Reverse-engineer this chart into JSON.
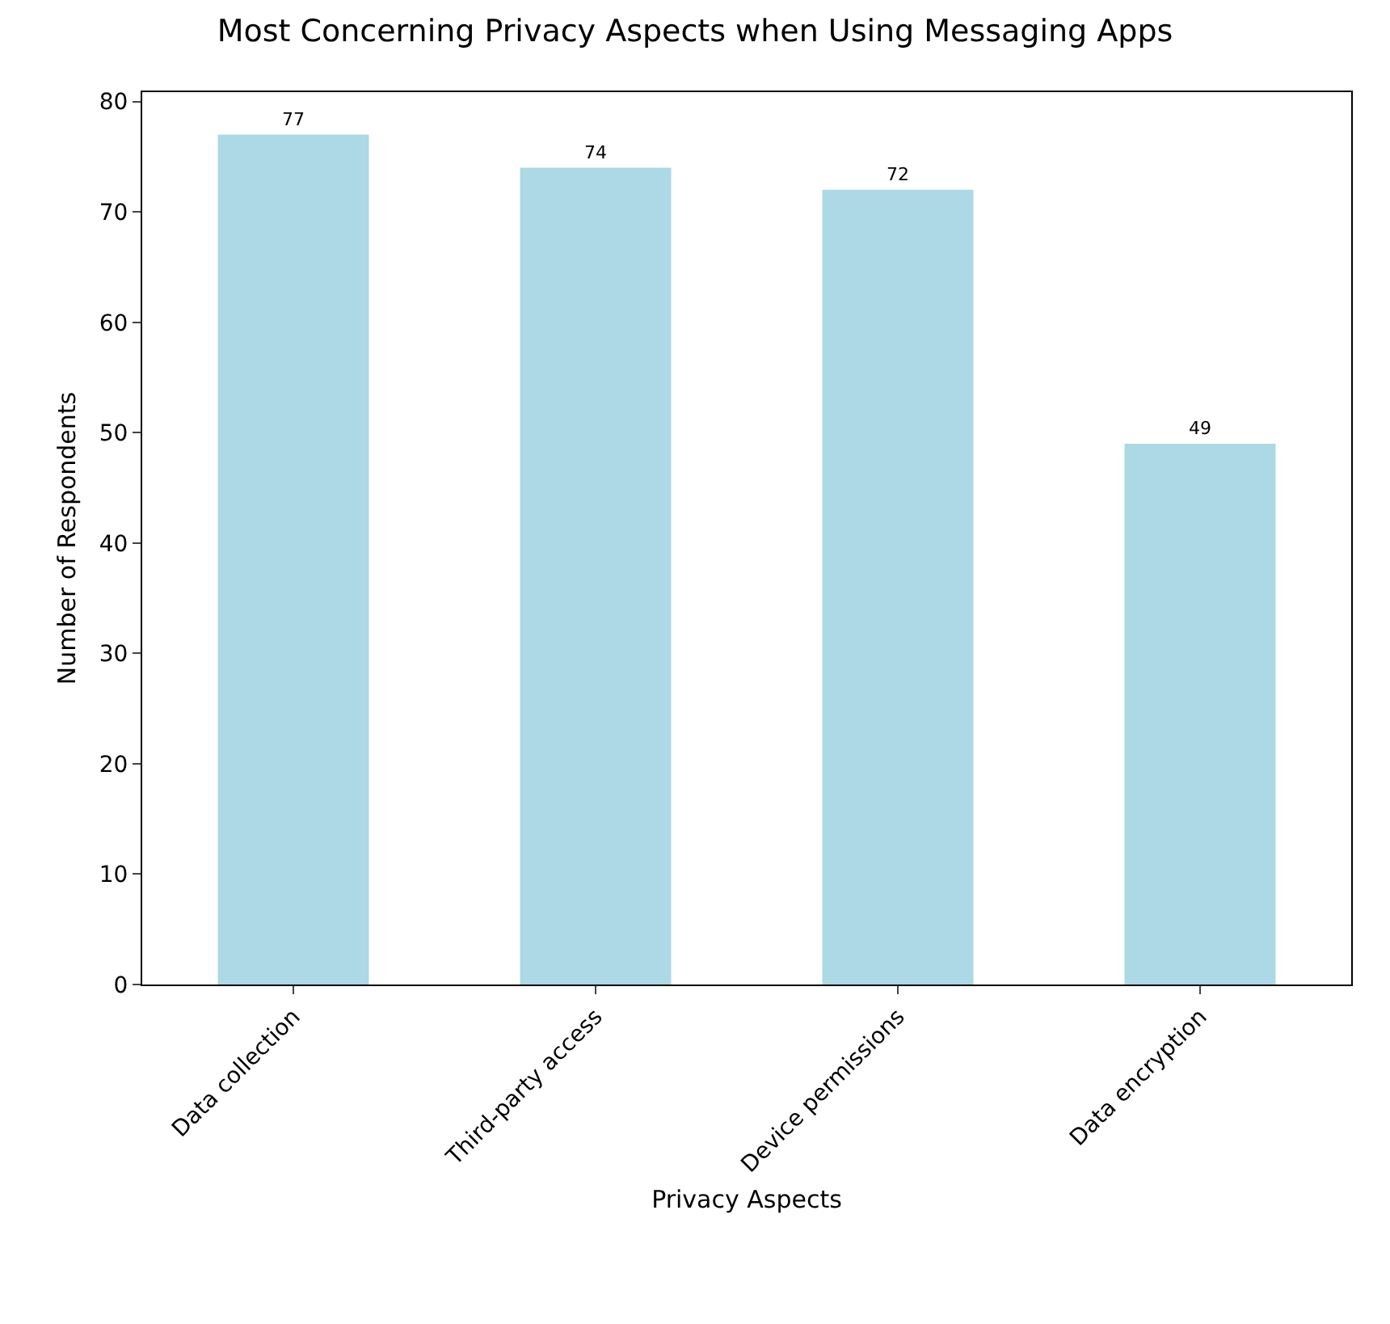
{
  "chart_data": {
    "type": "bar",
    "title": "Most Concerning Privacy Aspects when Using Messaging Apps",
    "xlabel": "Privacy Aspects",
    "ylabel": "Number of Respondents",
    "categories": [
      "Data collection",
      "Third-party access",
      "Device permissions",
      "Data encryption"
    ],
    "values": [
      77,
      74,
      72,
      49
    ],
    "color": "#add8e6",
    "data_labels": true,
    "ylim": [
      0,
      80.85
    ],
    "yticks": [
      0,
      10,
      20,
      30,
      40,
      50,
      60,
      70,
      80
    ],
    "grid": false
  }
}
